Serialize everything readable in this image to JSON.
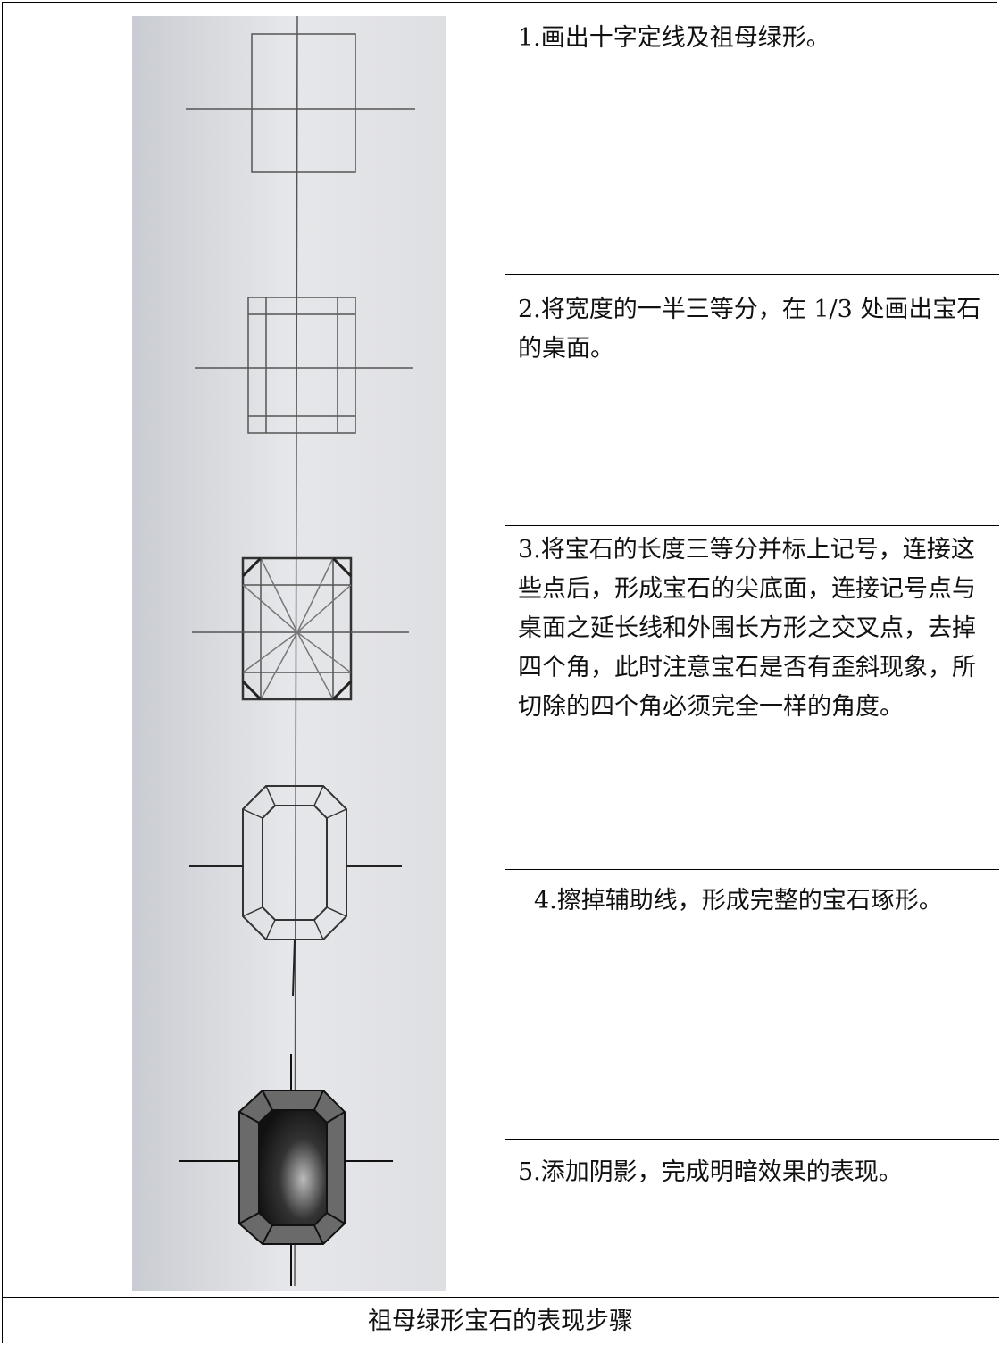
{
  "steps": [
    "1.画出十字定线及祖母绿形。",
    "2.将宽度的一半三等分，在 1/3 处画出宝石的桌面。",
    "3.将宝石的长度三等分并标上记号，连接这些点后，形成宝石的尖底面，连接记号点与桌面之延长线和外围长方形之交叉点，去掉四个角，此时注意宝石是否有歪斜现象，所切除的四个角必须完全一样的角度。",
    "4.擦掉辅助线，形成完整的宝石琢形。",
    "5.添加阴影，完成明暗效果的表现。"
  ],
  "caption": "祖母绿形宝石的表现步骤"
}
